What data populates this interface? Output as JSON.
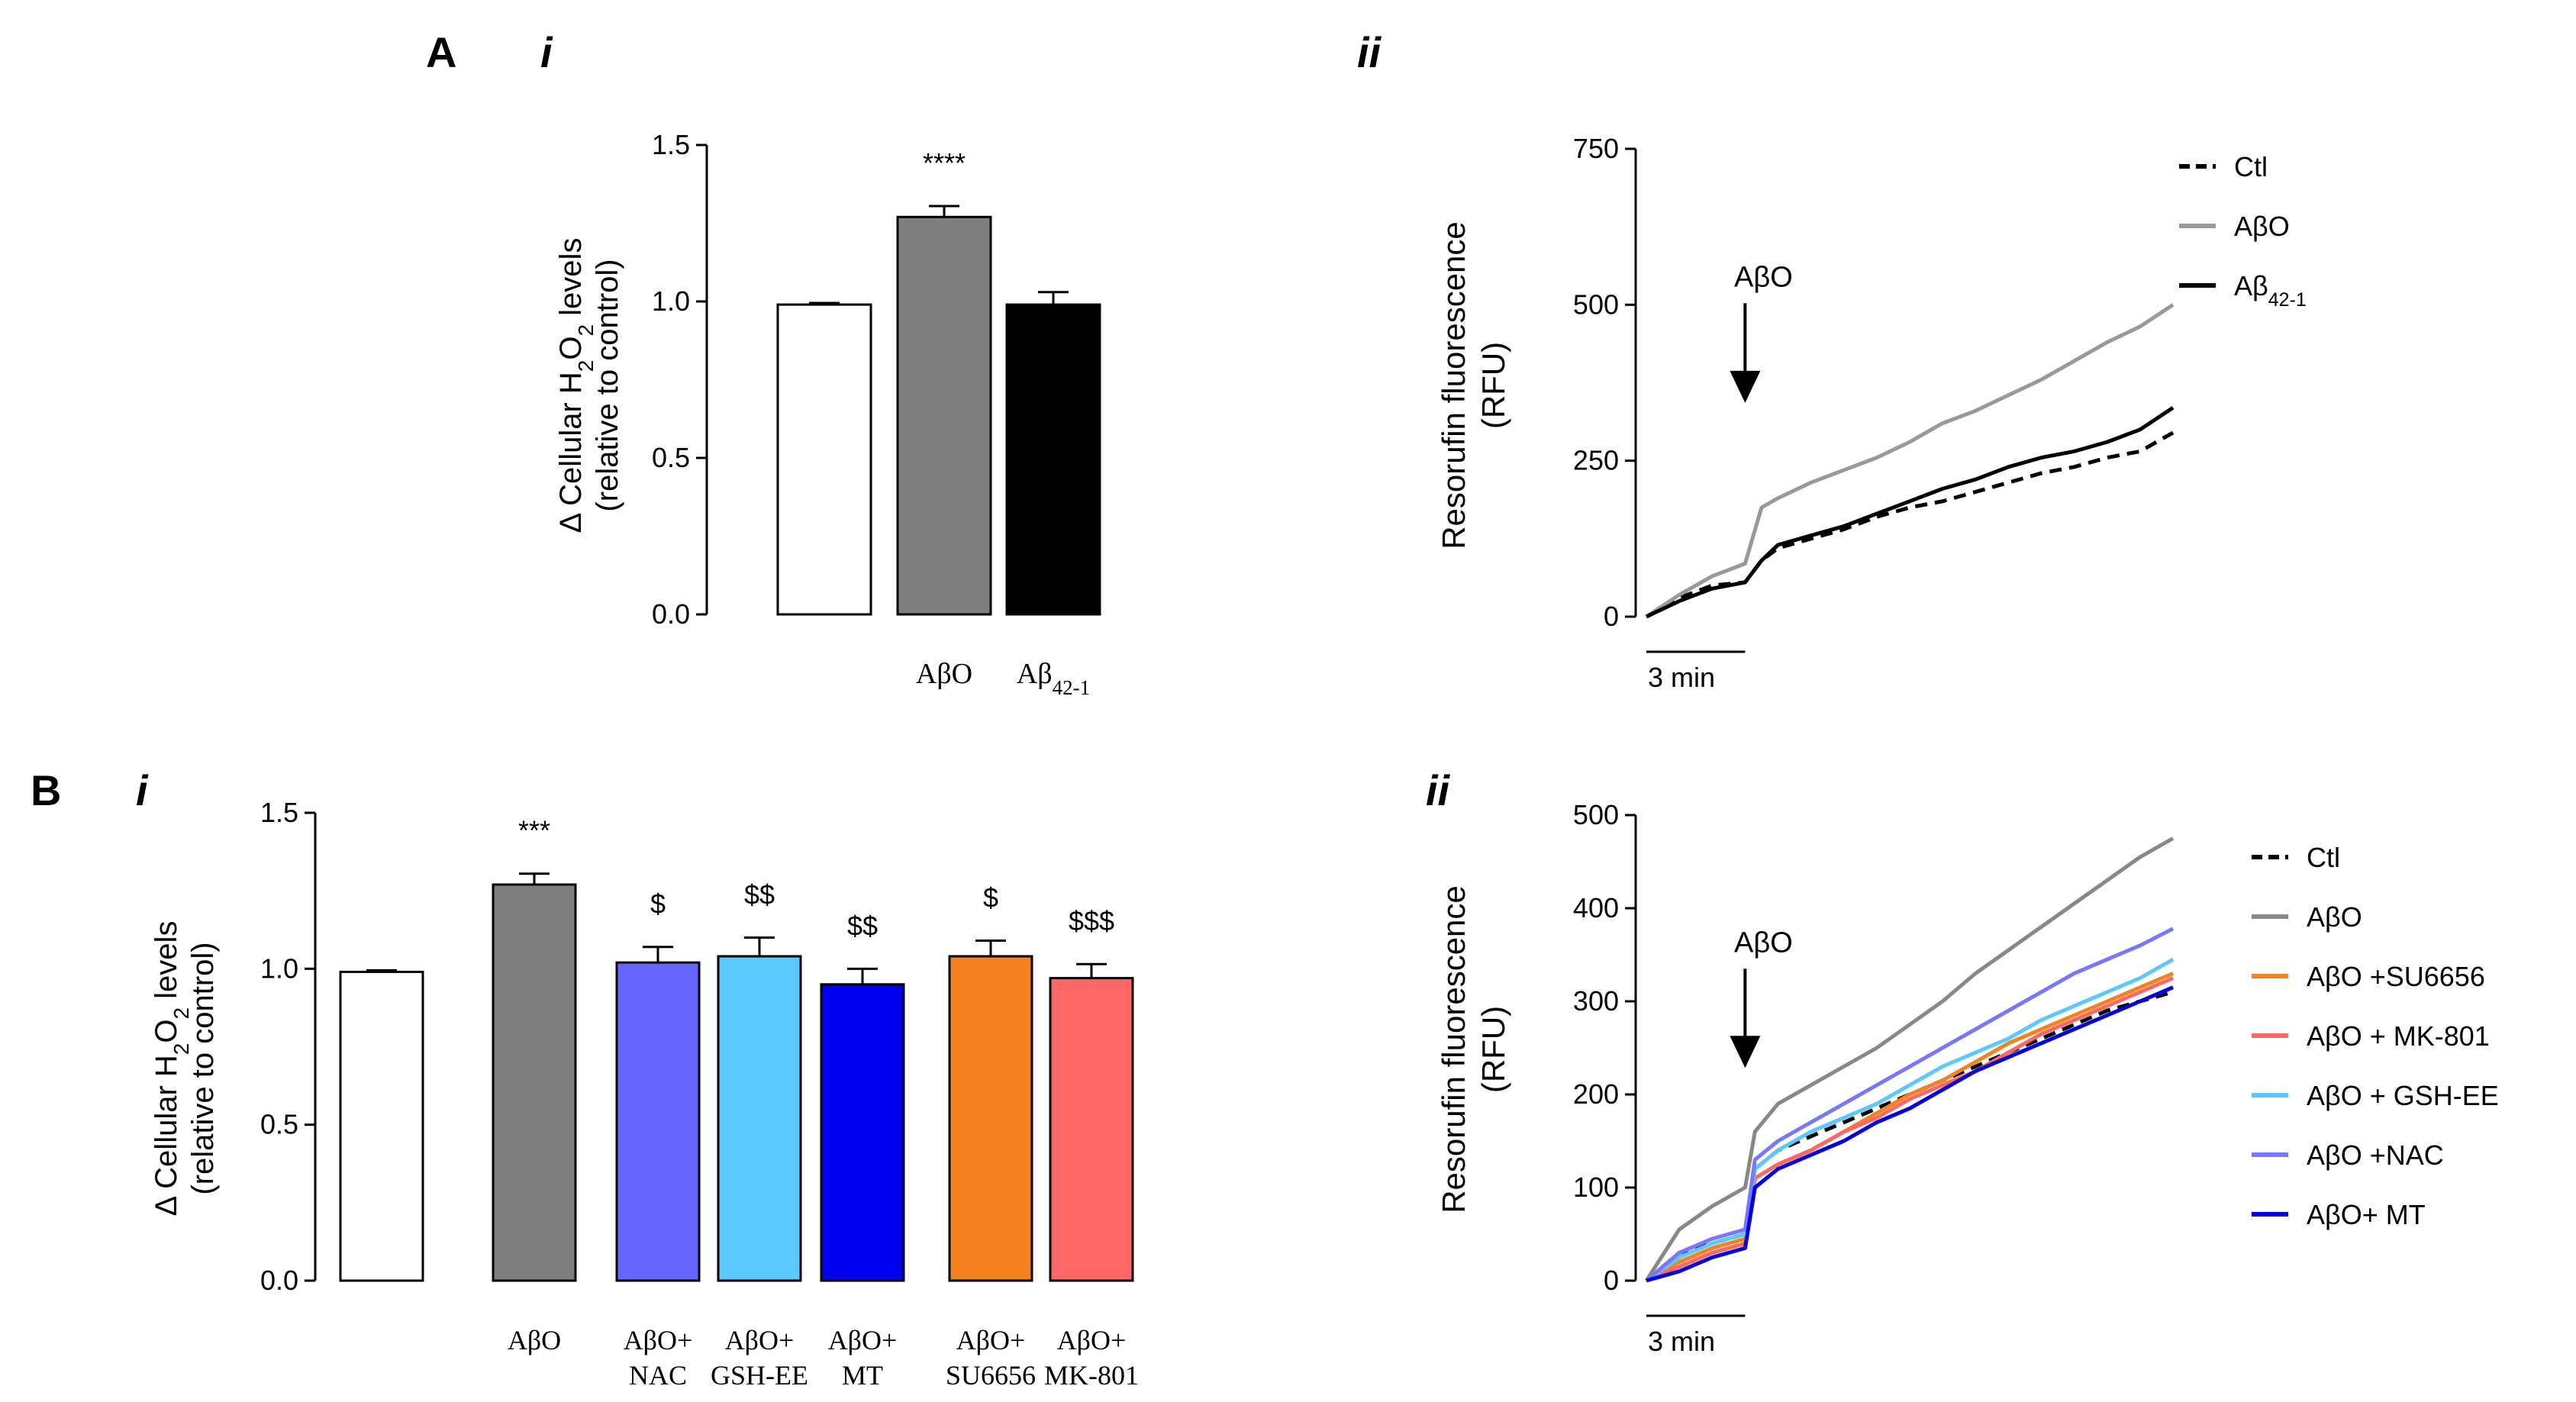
{
  "panel_labels": {
    "A": "A",
    "A_i": "i",
    "A_ii": "ii",
    "B": "B",
    "B_i": "i",
    "B_ii": "ii"
  },
  "chart_data": [
    {
      "id": "A-i",
      "type": "bar",
      "ylabel_line1": "Δ Cellular H2O2 levels",
      "ylabel_line2": "(relative to control)",
      "ylim": [
        0,
        1.5
      ],
      "yticks": [
        0.0,
        0.5,
        1.0,
        1.5
      ],
      "ytick_labels": [
        "0.0",
        "0.5",
        "1.0",
        "1.5"
      ],
      "categories": [
        "",
        "AβO",
        "Aβ42-1"
      ],
      "values": [
        0.99,
        1.27,
        0.99
      ],
      "errors": [
        0.005,
        0.035,
        0.04
      ],
      "colors": [
        "#ffffff",
        "#7f7f7f",
        "#000000"
      ],
      "annotations": [
        "",
        "****",
        ""
      ]
    },
    {
      "id": "A-ii",
      "type": "line",
      "ylabel_line1": "Resorufin fluorescence",
      "ylabel_line2": "(RFU)",
      "ylim": [
        0,
        750
      ],
      "yticks": [
        0,
        250,
        500,
        750
      ],
      "ytick_labels": [
        "0",
        "250",
        "500",
        "750"
      ],
      "x_range_min": [
        0,
        16
      ],
      "scalebar_label": "3 min",
      "arrow_label": "AβO",
      "arrow_x_min": 3,
      "legend": [
        "Ctl",
        "AβO",
        "Aβ42-1"
      ],
      "series": [
        {
          "name": "Ctl",
          "color": "#000000",
          "dash": true,
          "x": [
            0,
            1,
            2,
            3,
            3.5,
            4,
            5,
            6,
            7,
            8,
            9,
            10,
            11,
            12,
            13,
            14,
            15,
            16
          ],
          "y": [
            0,
            30,
            50,
            55,
            90,
            110,
            125,
            140,
            160,
            175,
            185,
            200,
            215,
            230,
            240,
            255,
            265,
            295
          ]
        },
        {
          "name": "AβO",
          "color": "#999999",
          "dash": false,
          "x": [
            0,
            1,
            2,
            3,
            3.5,
            4,
            5,
            6,
            7,
            8,
            9,
            10,
            11,
            12,
            13,
            14,
            15,
            16
          ],
          "y": [
            0,
            35,
            65,
            85,
            175,
            190,
            215,
            235,
            255,
            280,
            310,
            330,
            355,
            380,
            410,
            440,
            465,
            500
          ]
        },
        {
          "name": "Aβ42-1",
          "color": "#000000",
          "dash": false,
          "x": [
            0,
            1,
            2,
            3,
            3.5,
            4,
            5,
            6,
            7,
            8,
            9,
            10,
            11,
            12,
            13,
            14,
            15,
            16
          ],
          "y": [
            0,
            25,
            45,
            55,
            90,
            115,
            130,
            145,
            165,
            185,
            205,
            220,
            240,
            255,
            265,
            280,
            300,
            335
          ]
        }
      ]
    },
    {
      "id": "B-i",
      "type": "bar",
      "ylabel_line1": "Δ Cellular H2O2 levels",
      "ylabel_line2": "(relative to control)",
      "ylim": [
        0,
        1.5
      ],
      "yticks": [
        0.0,
        0.5,
        1.0,
        1.5
      ],
      "ytick_labels": [
        "0.0",
        "0.5",
        "1.0",
        "1.5"
      ],
      "categories": [
        "",
        "AβO",
        "AβO+\nNAC",
        "AβO+\nGSH-EE",
        "AβO+\nMT",
        "AβO+\nSU6656",
        "AβO+\nMK-801"
      ],
      "values": [
        0.99,
        1.27,
        1.02,
        1.04,
        0.95,
        1.04,
        0.97
      ],
      "errors": [
        0.005,
        0.035,
        0.05,
        0.06,
        0.05,
        0.05,
        0.045
      ],
      "colors": [
        "#ffffff",
        "#7f7f7f",
        "#6666ff",
        "#5bc8ff",
        "#0000f0",
        "#f58220",
        "#ff6666"
      ],
      "annotations": [
        "",
        "***",
        "$",
        "$$",
        "$$",
        "$",
        "$$$"
      ]
    },
    {
      "id": "B-ii",
      "type": "line",
      "ylabel_line1": "Resorufin fluorescence",
      "ylabel_line2": "(RFU)",
      "ylim": [
        0,
        500
      ],
      "yticks": [
        0,
        100,
        200,
        300,
        400,
        500
      ],
      "ytick_labels": [
        "0",
        "100",
        "200",
        "300",
        "400",
        "500"
      ],
      "x_range_min": [
        0,
        16
      ],
      "scalebar_label": "3 min",
      "arrow_label": "AβO",
      "arrow_x_min": 3,
      "legend": [
        "Ctl",
        "AβO",
        "AβO +SU6656",
        "AβO + MK-801",
        "AβO + GSH-EE",
        "AβO +NAC",
        "AβO+ MT"
      ],
      "series": [
        {
          "name": "Ctl",
          "color": "#000000",
          "dash": true,
          "x": [
            0,
            1,
            2,
            3,
            3.3,
            4,
            5,
            6,
            7,
            8,
            9,
            10,
            11,
            12,
            13,
            14,
            15,
            16
          ],
          "y": [
            0,
            30,
            40,
            50,
            120,
            140,
            155,
            170,
            185,
            200,
            215,
            230,
            245,
            260,
            275,
            290,
            300,
            310
          ]
        },
        {
          "name": "AβO",
          "color": "#888888",
          "dash": false,
          "x": [
            0,
            1,
            2,
            3,
            3.3,
            4,
            5,
            6,
            7,
            8,
            9,
            10,
            11,
            12,
            13,
            14,
            15,
            16
          ],
          "y": [
            0,
            55,
            80,
            100,
            160,
            190,
            210,
            230,
            250,
            275,
            300,
            330,
            355,
            380,
            405,
            430,
            455,
            475
          ]
        },
        {
          "name": "AβO +SU6656",
          "color": "#f58220",
          "dash": false,
          "x": [
            0,
            1,
            2,
            3,
            3.3,
            4,
            5,
            6,
            7,
            8,
            9,
            10,
            11,
            12,
            13,
            14,
            15,
            16
          ],
          "y": [
            0,
            20,
            35,
            45,
            110,
            125,
            140,
            160,
            180,
            200,
            215,
            235,
            255,
            270,
            285,
            300,
            315,
            330
          ]
        },
        {
          "name": "AβO + MK-801",
          "color": "#ff6666",
          "dash": false,
          "x": [
            0,
            1,
            2,
            3,
            3.3,
            4,
            5,
            6,
            7,
            8,
            9,
            10,
            11,
            12,
            13,
            14,
            15,
            16
          ],
          "y": [
            0,
            15,
            30,
            40,
            110,
            125,
            140,
            160,
            175,
            195,
            210,
            225,
            245,
            265,
            280,
            295,
            310,
            325
          ]
        },
        {
          "name": "AβO + GSH-EE",
          "color": "#5bc8ff",
          "dash": false,
          "x": [
            0,
            1,
            2,
            3,
            3.3,
            4,
            5,
            6,
            7,
            8,
            9,
            10,
            11,
            12,
            13,
            14,
            15,
            16
          ],
          "y": [
            0,
            25,
            40,
            50,
            120,
            140,
            160,
            175,
            190,
            210,
            230,
            245,
            260,
            280,
            295,
            310,
            325,
            345
          ]
        },
        {
          "name": "AβO +NAC",
          "color": "#7777ff",
          "dash": false,
          "x": [
            0,
            1,
            2,
            3,
            3.3,
            4,
            5,
            6,
            7,
            8,
            9,
            10,
            11,
            12,
            13,
            14,
            15,
            16
          ],
          "y": [
            0,
            30,
            45,
            55,
            130,
            150,
            170,
            190,
            210,
            230,
            250,
            270,
            290,
            310,
            330,
            345,
            360,
            378
          ]
        },
        {
          "name": "AβO+ MT",
          "color": "#0000e0",
          "dash": false,
          "x": [
            0,
            1,
            2,
            3,
            3.3,
            4,
            5,
            6,
            7,
            8,
            9,
            10,
            11,
            12,
            13,
            14,
            15,
            16
          ],
          "y": [
            0,
            10,
            25,
            35,
            100,
            120,
            135,
            150,
            170,
            185,
            205,
            225,
            240,
            255,
            270,
            285,
            300,
            315
          ]
        }
      ]
    }
  ]
}
